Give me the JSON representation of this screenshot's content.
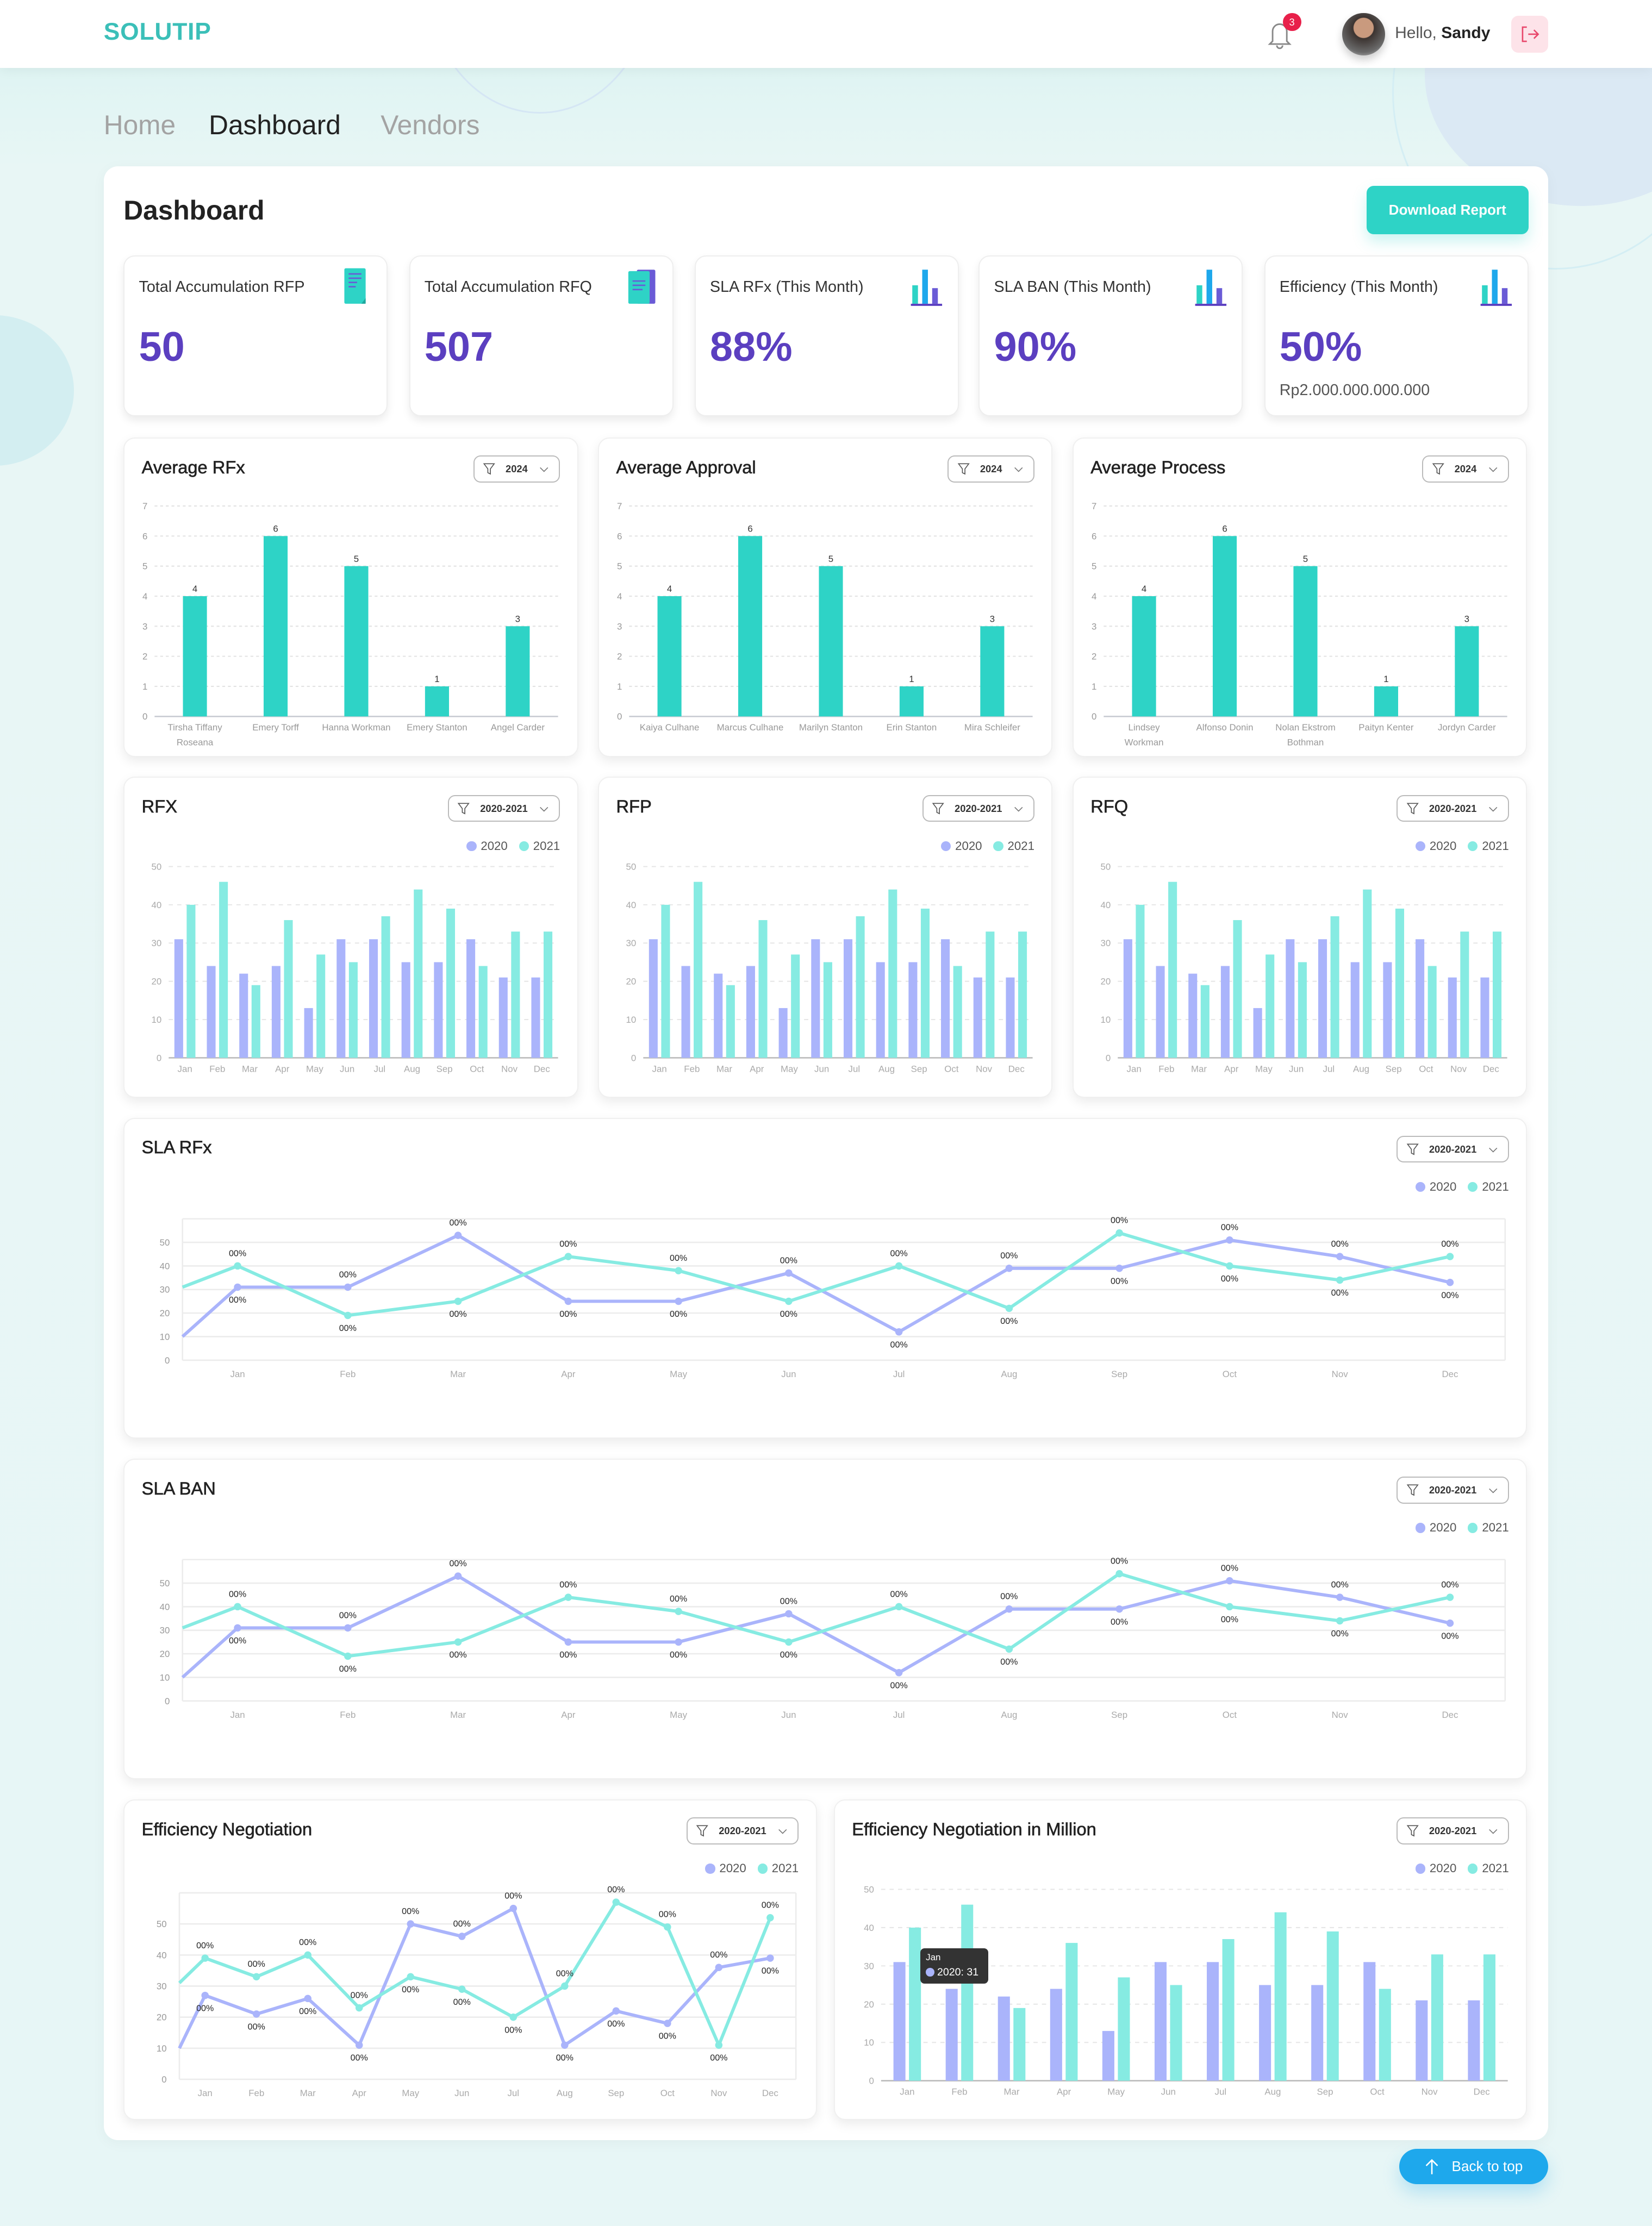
{
  "header": {
    "logo": "SOLUTIP",
    "notification_count": "3",
    "greeting": "Hello,",
    "user_name": "Sandy"
  },
  "nav": [
    {
      "label": "Home"
    },
    {
      "label": "Dashboard",
      "active": true
    },
    {
      "label": "Vendors"
    }
  ],
  "page": {
    "title": "Dashboard",
    "download_label": "Download Report"
  },
  "colors": {
    "accent": "#2ed3c6",
    "value": "#5b3fc0",
    "series_2020": "#aab4fb",
    "series_2021": "#86ebe2",
    "back_to_top": "#1ea8ec"
  },
  "stats": [
    {
      "title": "Total Accumulation RFP",
      "value": "50",
      "icon": "document-icon"
    },
    {
      "title": "Total Accumulation RFQ",
      "value": "507",
      "icon": "documents-icon"
    },
    {
      "title": "SLA RFx (This Month)",
      "value": "88%",
      "icon": "bar-chart-icon"
    },
    {
      "title": "SLA BAN (This Month)",
      "value": "90%",
      "icon": "bar-chart-icon"
    },
    {
      "title": "Efficiency (This Month)",
      "value": "50%",
      "sub": "Rp2.000.000.000.000",
      "icon": "bar-chart-icon"
    }
  ],
  "chart_data": [
    {
      "type": "bar",
      "title": "Average RFx",
      "filter": "2024",
      "ylim": [
        0,
        7
      ],
      "grid": true,
      "color": "#2ed3c6",
      "categories": [
        "Tirsha Tiffany Roseana",
        "Emery Torff",
        "Hanna Workman",
        "Emery Stanton",
        "Angel Carder"
      ],
      "values": [
        4,
        6,
        5,
        1,
        3
      ]
    },
    {
      "type": "bar",
      "title": "Average Approval",
      "filter": "2024",
      "ylim": [
        0,
        7
      ],
      "grid": true,
      "color": "#2ed3c6",
      "categories": [
        "Kaiya Culhane",
        "Marcus Culhane",
        "Marilyn Stanton",
        "Erin Stanton",
        "Mira Schleifer"
      ],
      "values": [
        4,
        6,
        5,
        1,
        3
      ]
    },
    {
      "type": "bar",
      "title": "Average Process",
      "filter": "2024",
      "ylim": [
        0,
        7
      ],
      "grid": true,
      "color": "#2ed3c6",
      "categories": [
        "Lindsey Workman",
        "Alfonso Donin",
        "Nolan Ekstrom Bothman",
        "Paityn Kenter",
        "Jordyn Carder"
      ],
      "values": [
        4,
        6,
        5,
        1,
        3
      ]
    },
    {
      "type": "bar",
      "title": "RFX",
      "filter": "2020-2021",
      "ylim": [
        0,
        50
      ],
      "grid": true,
      "legend": "top-right",
      "categories": [
        "Jan",
        "Feb",
        "Mar",
        "Apr",
        "May",
        "Jun",
        "Jul",
        "Aug",
        "Sep",
        "Oct",
        "Nov",
        "Dec"
      ],
      "series": [
        {
          "name": "2020",
          "color": "#aab4fb",
          "values": [
            31,
            24,
            22,
            24,
            13,
            31,
            31,
            25,
            25,
            31,
            21,
            21
          ]
        },
        {
          "name": "2021",
          "color": "#86ebe2",
          "values": [
            40,
            46,
            19,
            36,
            27,
            25,
            37,
            44,
            39,
            24,
            33,
            33
          ]
        }
      ]
    },
    {
      "type": "bar",
      "title": "RFP",
      "filter": "2020-2021",
      "ylim": [
        0,
        50
      ],
      "grid": true,
      "legend": "top-right",
      "categories": [
        "Jan",
        "Feb",
        "Mar",
        "Apr",
        "May",
        "Jun",
        "Jul",
        "Aug",
        "Sep",
        "Oct",
        "Nov",
        "Dec"
      ],
      "series": [
        {
          "name": "2020",
          "color": "#aab4fb",
          "values": [
            31,
            24,
            22,
            24,
            13,
            31,
            31,
            25,
            25,
            31,
            21,
            21
          ]
        },
        {
          "name": "2021",
          "color": "#86ebe2",
          "values": [
            40,
            46,
            19,
            36,
            27,
            25,
            37,
            44,
            39,
            24,
            33,
            33
          ]
        }
      ]
    },
    {
      "type": "bar",
      "title": "RFQ",
      "filter": "2020-2021",
      "ylim": [
        0,
        50
      ],
      "grid": true,
      "legend": "top-right",
      "categories": [
        "Jan",
        "Feb",
        "Mar",
        "Apr",
        "May",
        "Jun",
        "Jul",
        "Aug",
        "Sep",
        "Oct",
        "Nov",
        "Dec"
      ],
      "series": [
        {
          "name": "2020",
          "color": "#aab4fb",
          "values": [
            31,
            24,
            22,
            24,
            13,
            31,
            31,
            25,
            25,
            31,
            21,
            21
          ]
        },
        {
          "name": "2021",
          "color": "#86ebe2",
          "values": [
            40,
            46,
            19,
            36,
            27,
            25,
            37,
            44,
            39,
            24,
            33,
            33
          ]
        }
      ]
    },
    {
      "type": "line",
      "title": "SLA RFx",
      "filter": "2020-2021",
      "ylim": [
        0,
        60
      ],
      "yticks": [
        0,
        10,
        20,
        30,
        40,
        50
      ],
      "grid": true,
      "legend": "top-right",
      "point_label": "00%",
      "categories": [
        "Jan",
        "Feb",
        "Mar",
        "Apr",
        "May",
        "Jun",
        "Jul",
        "Aug",
        "Sep",
        "Oct",
        "Nov",
        "Dec"
      ],
      "series": [
        {
          "name": "2020",
          "color": "#aab4fb",
          "leading_value": 10,
          "values": [
            31,
            31,
            53,
            25,
            25,
            37,
            12,
            39,
            39,
            51,
            44,
            33
          ]
        },
        {
          "name": "2021",
          "color": "#86ebe2",
          "leading_value": 31,
          "values": [
            40,
            19,
            25,
            44,
            38,
            25,
            40,
            22,
            54,
            40,
            34,
            44
          ]
        }
      ]
    },
    {
      "type": "line",
      "title": "SLA BAN",
      "filter": "2020-2021",
      "ylim": [
        0,
        60
      ],
      "yticks": [
        0,
        10,
        20,
        30,
        40,
        50
      ],
      "grid": true,
      "legend": "top-right",
      "point_label": "00%",
      "categories": [
        "Jan",
        "Feb",
        "Mar",
        "Apr",
        "May",
        "Jun",
        "Jul",
        "Aug",
        "Sep",
        "Oct",
        "Nov",
        "Dec"
      ],
      "series": [
        {
          "name": "2020",
          "color": "#aab4fb",
          "leading_value": 10,
          "values": [
            31,
            31,
            53,
            25,
            25,
            37,
            12,
            39,
            39,
            51,
            44,
            33
          ]
        },
        {
          "name": "2021",
          "color": "#86ebe2",
          "leading_value": 31,
          "values": [
            40,
            19,
            25,
            44,
            38,
            25,
            40,
            22,
            54,
            40,
            34,
            44
          ]
        }
      ]
    },
    {
      "type": "line",
      "title": "Efficiency Negotiation",
      "filter": "2020-2021",
      "ylim": [
        0,
        60
      ],
      "yticks": [
        0,
        10,
        20,
        30,
        40,
        50
      ],
      "grid": true,
      "legend": "top-right",
      "point_label": "00%",
      "categories": [
        "Jan",
        "Feb",
        "Mar",
        "Apr",
        "May",
        "Jun",
        "Jul",
        "Aug",
        "Sep",
        "Oct",
        "Nov",
        "Dec"
      ],
      "series": [
        {
          "name": "2020",
          "color": "#aab4fb",
          "leading_value": 10,
          "values": [
            27,
            21,
            26,
            11,
            50,
            46,
            55,
            11,
            22,
            18,
            36,
            39
          ]
        },
        {
          "name": "2021",
          "color": "#86ebe2",
          "leading_value": 31,
          "values": [
            39,
            33,
            40,
            23,
            33,
            29,
            20,
            30,
            57,
            49,
            11,
            52
          ]
        }
      ]
    },
    {
      "type": "bar",
      "title": "Efficiency Negotiation in Million",
      "filter": "2020-2021",
      "ylim": [
        0,
        50
      ],
      "grid": true,
      "legend": "top-right",
      "categories": [
        "Jan",
        "Feb",
        "Mar",
        "Apr",
        "May",
        "Jun",
        "Jul",
        "Aug",
        "Sep",
        "Oct",
        "Nov",
        "Dec"
      ],
      "series": [
        {
          "name": "2020",
          "color": "#aab4fb",
          "values": [
            31,
            24,
            22,
            24,
            13,
            31,
            31,
            25,
            25,
            31,
            21,
            21
          ]
        },
        {
          "name": "2021",
          "color": "#86ebe2",
          "values": [
            40,
            46,
            19,
            36,
            27,
            25,
            37,
            44,
            39,
            24,
            33,
            33
          ]
        }
      ],
      "tooltip": {
        "title": "Jan",
        "text": "2020: 31"
      }
    }
  ],
  "back_to_top": "Back to top"
}
